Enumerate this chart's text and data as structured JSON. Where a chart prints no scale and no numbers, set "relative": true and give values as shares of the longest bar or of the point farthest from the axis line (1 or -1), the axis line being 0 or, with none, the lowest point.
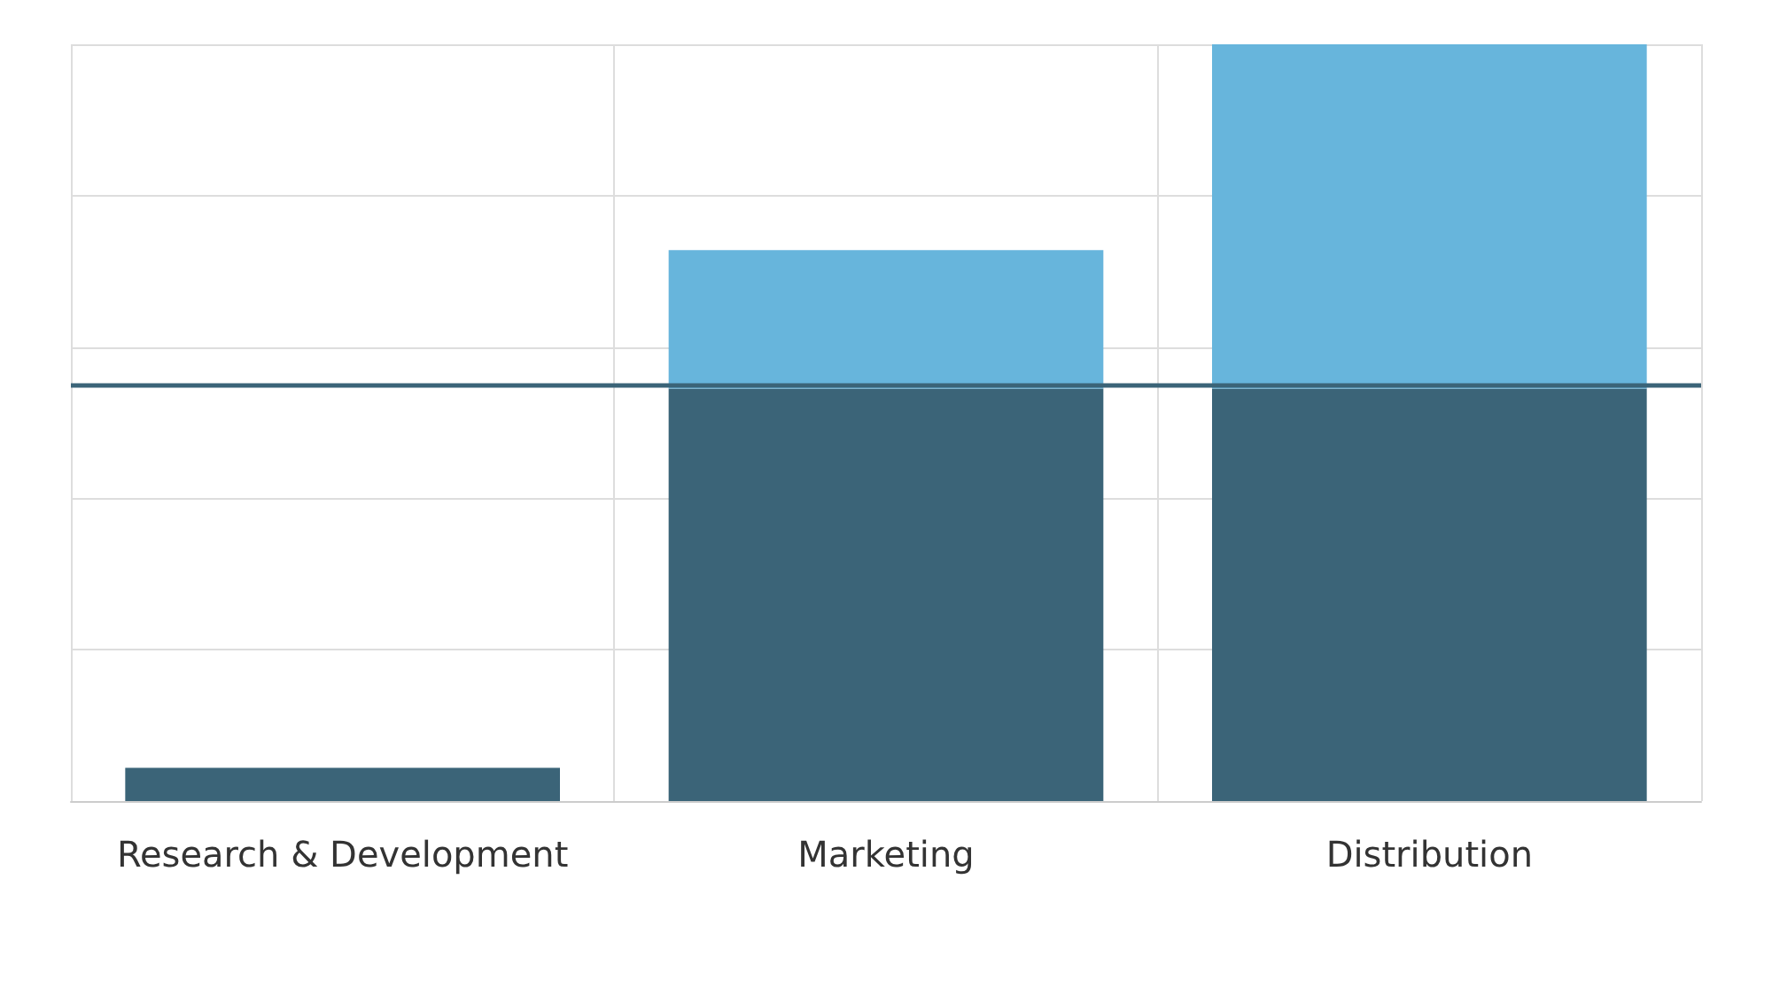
{
  "chart_data": {
    "type": "bar",
    "stacked": true,
    "relative": true,
    "categories": [
      "Research & Development",
      "Marketing",
      "Distribution"
    ],
    "series": [
      {
        "color": "#3b6478",
        "values": [
          0.044,
          0.545,
          0.545
        ]
      },
      {
        "color": "#67b5dc",
        "values": [
          null,
          0.183,
          0.455
        ]
      }
    ],
    "ref_lines": [
      {
        "axis": "y",
        "value": 0.548,
        "color": "#3b6478"
      }
    ],
    "grid": true
  }
}
